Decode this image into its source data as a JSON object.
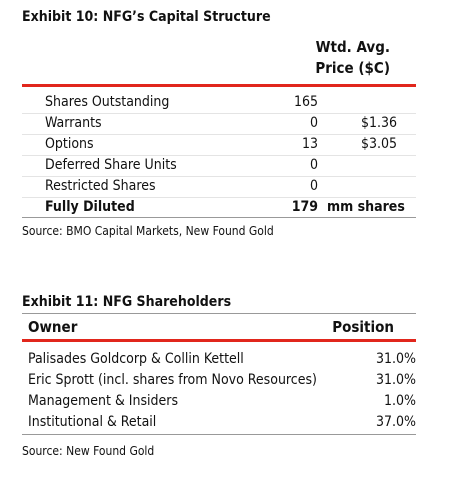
{
  "exhibit10": {
    "title": "Exhibit 10: NFG’s Capital Structure",
    "header": {
      "price_line1": "Wtd. Avg.",
      "price_line2": "Price ($C)"
    },
    "rows": [
      {
        "label": "Shares Outstanding",
        "value": 165
      },
      {
        "label": "Warrants",
        "value": 0,
        "price": "$1.36"
      },
      {
        "label": "Options",
        "value": 13,
        "price": "$3.05"
      },
      {
        "label": "Deferred Share Units",
        "value": 0
      },
      {
        "label": "Restricted Shares",
        "value": 0
      }
    ],
    "total": {
      "label": "Fully Diluted",
      "value": 179,
      "unit": "mm shares"
    },
    "source": "Source: BMO Capital Markets, New Found Gold"
  },
  "exhibit11": {
    "title": "Exhibit 11: NFG Shareholders",
    "header": {
      "owner": "Owner",
      "position": "Position"
    },
    "rows": [
      {
        "owner": "Palisades Goldcorp & Collin Kettell",
        "position": "31.0%"
      },
      {
        "owner": "Eric Sprott (incl. shares from Novo Resources)",
        "position": "31.0%"
      },
      {
        "owner": "Management & Insiders",
        "position": "1.0%"
      },
      {
        "owner": "Institutional & Retail",
        "position": "37.0%"
      }
    ],
    "source": "Source: New Found Gold"
  }
}
